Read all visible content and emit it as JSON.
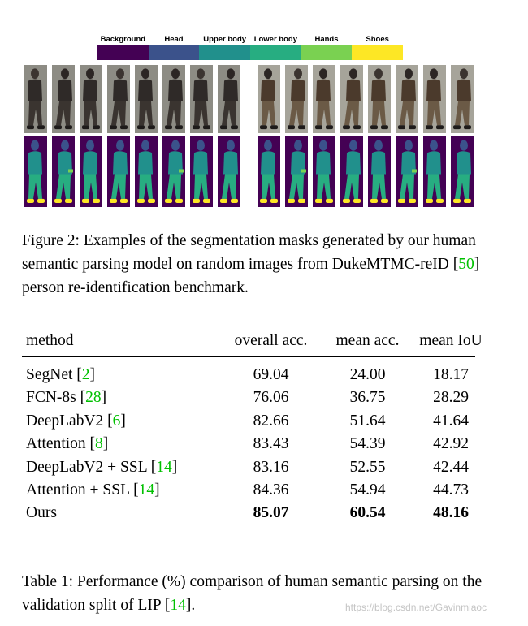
{
  "legend": [
    {
      "label": "Background",
      "color": "#440154"
    },
    {
      "label": "Head",
      "color": "#3b528b"
    },
    {
      "label": "Upper body",
      "color": "#21908c"
    },
    {
      "label": "Lower body",
      "color": "#27ad81"
    },
    {
      "label": "Hands",
      "color": "#7ad151"
    },
    {
      "label": "Shoes",
      "color": "#fde725"
    }
  ],
  "figure": {
    "caption": {
      "prefix": "Figure 2:  Examples of the segmentation masks generated by our human semantic parsing model on random images from DukeMTMC-reID [",
      "cite": "50",
      "suffix": "] person re-identification benchmark."
    }
  },
  "table": {
    "headers": [
      "method",
      "overall acc.",
      "mean acc.",
      "mean IoU"
    ],
    "rows": [
      {
        "method": "SegNet [",
        "cite": "2",
        "close": "]",
        "overall": "69.04",
        "mean_acc": "24.00",
        "iou": "18.17",
        "bold": false
      },
      {
        "method": "FCN-8s [",
        "cite": "28",
        "close": "]",
        "overall": "76.06",
        "mean_acc": "36.75",
        "iou": "28.29",
        "bold": false
      },
      {
        "method": "DeepLabV2 [",
        "cite": "6",
        "close": "]",
        "overall": "82.66",
        "mean_acc": "51.64",
        "iou": "41.64",
        "bold": false
      },
      {
        "method": "Attention [",
        "cite": "8",
        "close": "]",
        "overall": "83.43",
        "mean_acc": "54.39",
        "iou": "42.92",
        "bold": false
      },
      {
        "method": "DeepLabV2 + SSL [",
        "cite": "14",
        "close": "]",
        "overall": "83.16",
        "mean_acc": "52.55",
        "iou": "42.44",
        "bold": false
      },
      {
        "method": "Attention + SSL [",
        "cite": "14",
        "close": "]",
        "overall": "84.36",
        "mean_acc": "54.94",
        "iou": "44.73",
        "bold": false
      },
      {
        "method": "Ours",
        "cite": "",
        "close": "",
        "overall": "85.07",
        "mean_acc": "60.54",
        "iou": "48.16",
        "bold": true
      }
    ],
    "caption": {
      "prefix": "Table 1:  Performance (%) comparison of human semantic parsing on the validation split of LIP [",
      "cite": "14",
      "suffix": "]."
    }
  },
  "watermark": "https://blog.csdn.net/Gavinmiaoc",
  "colors": {
    "citation": "#00c000"
  }
}
